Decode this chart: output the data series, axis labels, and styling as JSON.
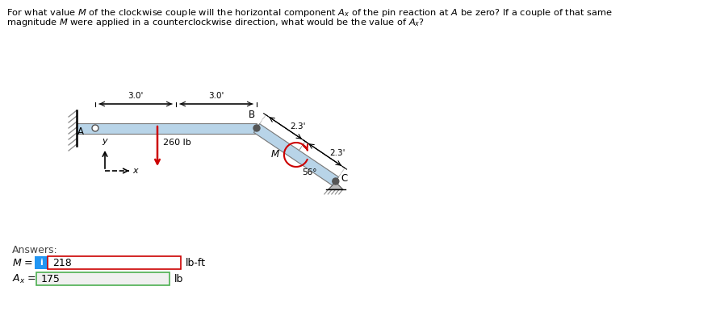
{
  "background_color": "#ffffff",
  "beam_color": "#b8d4e8",
  "beam_stroke": "#777777",
  "dim_30_left": "3.0'",
  "dim_30_right": "3.0'",
  "dim_23_top": "2.3'",
  "dim_23_bot": "2.3'",
  "angle_label": "56°",
  "force_label": "260 lb",
  "moment_label": "M",
  "label_A": "A",
  "label_B": "B",
  "label_C": "C",
  "label_y": "y",
  "label_x": "x",
  "answers_label": "Answers:",
  "M_value": "218",
  "M_unit": "lb-ft",
  "Ax_value": "175",
  "Ax_unit": "lb",
  "i_box_color": "#2196F3",
  "M_box_border": "#cc0000",
  "Ax_box_border": "#4caf50",
  "answer_box_fill": "#f0f0f0",
  "force_color": "#cc0000",
  "moment_color": "#cc0000",
  "wall_color": "#888888"
}
